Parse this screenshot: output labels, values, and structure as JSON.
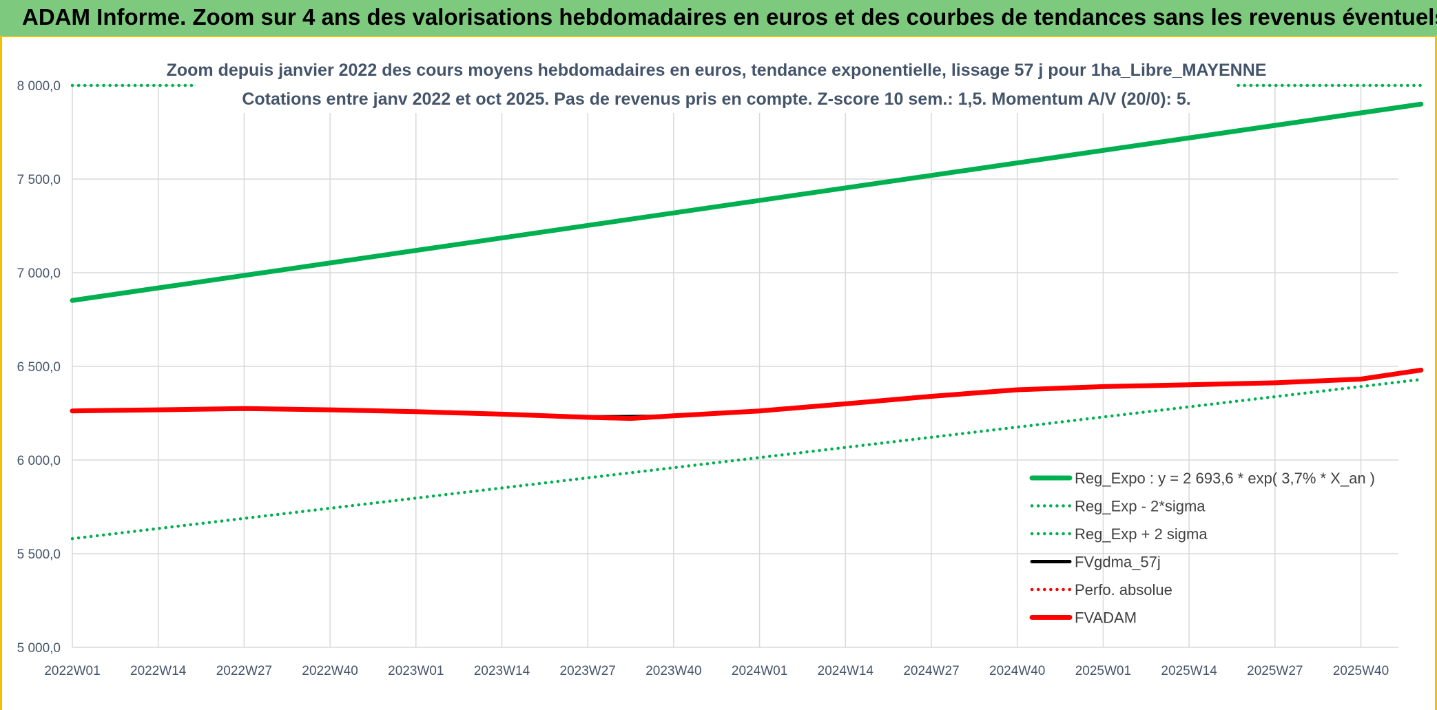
{
  "banner": {
    "title": "ADAM Informe. Zoom sur 4 ans des valorisations hebdomadaires en euros et des courbes de tendances sans les revenus éventuels"
  },
  "chart_data": {
    "type": "line",
    "title": "Zoom depuis janvier 2022 des cours moyens hebdomadaires en euros, tendance exponentielle, lissage 57 j pour 1ha_Libre_MAYENNE",
    "subtitle": "Cotations entre janv 2022 et oct 2025. Pas de revenus pris en compte. Z-score 10 sem.: 1,5. Momentum A/V (20/0): 5.",
    "xlabel": "",
    "ylabel": "",
    "ylim": [
      5000,
      8000
    ],
    "yticks": [
      "8 000,0",
      "7 500,0",
      "7 000,0",
      "6 500,0",
      "6 000,0",
      "5 500,0",
      "5 000,0"
    ],
    "x_ticks": [
      "2022W01",
      "2022W14",
      "2022W27",
      "2022W40",
      "2023W01",
      "2023W14",
      "2023W27",
      "2023W40",
      "2024W01",
      "2024W14",
      "2024W27",
      "2024W40",
      "2025W01",
      "2025W14",
      "2025W27",
      "2025W40"
    ],
    "grid": true,
    "legend_position": "bottom-right",
    "series": [
      {
        "name": "Reg_Expo : y = 2 693,6 * exp( 3,7% *  X_an )",
        "style": "solid-thick",
        "color": "#00b050",
        "points": [
          [
            0,
            6852
          ],
          [
            15.7,
            7900
          ]
        ]
      },
      {
        "name": "Reg_Exp - 2*sigma",
        "style": "dotted",
        "color": "#00b050",
        "points": [
          [
            0,
            5580
          ],
          [
            15.7,
            6430
          ]
        ]
      },
      {
        "name": "Reg_Exp + 2 sigma",
        "style": "dotted",
        "color": "#00b050",
        "points": [
          [
            0,
            8000
          ],
          [
            15.7,
            8000
          ]
        ]
      },
      {
        "name": "FVgdma_57j",
        "style": "solid",
        "color": "#000000",
        "points": [
          [
            0,
            6262
          ],
          [
            2,
            6275
          ],
          [
            3,
            6272
          ],
          [
            4,
            6262
          ],
          [
            5,
            6248
          ],
          [
            6,
            6232
          ],
          [
            6.8,
            6235
          ],
          [
            7,
            6240
          ],
          [
            8,
            6265
          ],
          [
            9,
            6300
          ],
          [
            10,
            6340
          ],
          [
            11,
            6375
          ],
          [
            12,
            6392
          ],
          [
            13,
            6402
          ],
          [
            14,
            6415
          ],
          [
            15,
            6430
          ],
          [
            15.7,
            6478
          ]
        ]
      },
      {
        "name": "Perfo. absolue",
        "style": "dotted",
        "color": "#ff0000",
        "points": []
      },
      {
        "name": "FVADAM",
        "style": "solid-thick",
        "color": "#ff0000",
        "points": [
          [
            0,
            6262
          ],
          [
            1,
            6268
          ],
          [
            2,
            6275
          ],
          [
            3,
            6268
          ],
          [
            4,
            6258
          ],
          [
            5,
            6245
          ],
          [
            6,
            6228
          ],
          [
            6.5,
            6222
          ],
          [
            7,
            6236
          ],
          [
            8,
            6262
          ],
          [
            9,
            6300
          ],
          [
            10,
            6340
          ],
          [
            11,
            6375
          ],
          [
            12,
            6392
          ],
          [
            13,
            6402
          ],
          [
            14,
            6412
          ],
          [
            15,
            6432
          ],
          [
            15.7,
            6480
          ]
        ]
      }
    ]
  }
}
